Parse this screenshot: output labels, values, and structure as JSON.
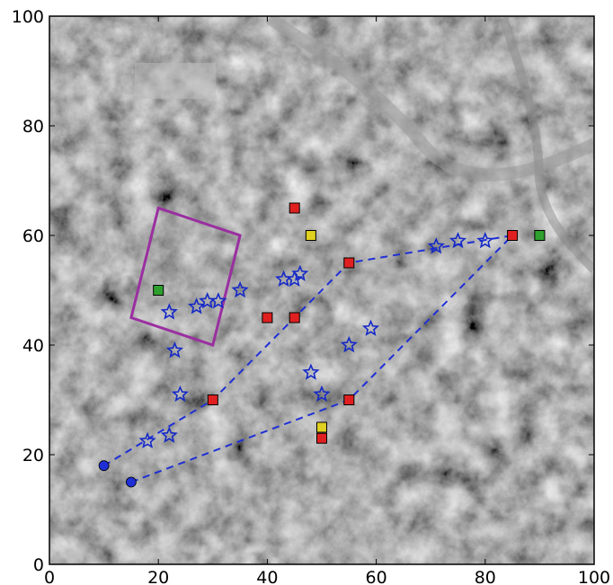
{
  "chart_data": {
    "type": "scatter",
    "xlim": [
      0,
      100
    ],
    "ylim": [
      0,
      100
    ],
    "x_ticks": [
      "0",
      "20",
      "40",
      "60",
      "80",
      "100"
    ],
    "y_ticks": [
      "0",
      "20",
      "40",
      "60",
      "80",
      "100"
    ],
    "grid": false,
    "background": "grayscale satellite image",
    "series": [
      {
        "marker": "dashed-line",
        "color": "#1f2fd6",
        "points": [
          [
            10,
            18
          ],
          [
            30,
            30
          ],
          [
            45,
            45
          ],
          [
            55,
            55
          ],
          [
            85,
            60
          ]
        ]
      },
      {
        "marker": "dashed-line",
        "color": "#1f2fd6",
        "points": [
          [
            15,
            15
          ],
          [
            55,
            30
          ],
          [
            85,
            60
          ]
        ]
      },
      {
        "marker": "circle",
        "color": "#1f2fd6",
        "points": [
          [
            10,
            18
          ],
          [
            15,
            15
          ]
        ]
      },
      {
        "marker": "square",
        "color": "#e02020",
        "points": [
          [
            30,
            30
          ],
          [
            40,
            45
          ],
          [
            45,
            45
          ],
          [
            55,
            55
          ],
          [
            45,
            65
          ],
          [
            55,
            30
          ],
          [
            50,
            23
          ],
          [
            85,
            60
          ]
        ]
      },
      {
        "marker": "square",
        "color": "#2ea02e",
        "points": [
          [
            20,
            50
          ],
          [
            90,
            60
          ]
        ]
      },
      {
        "marker": "square",
        "color": "#e0d020",
        "points": [
          [
            48,
            60
          ],
          [
            50,
            25
          ]
        ]
      },
      {
        "marker": "star",
        "color": "#1428c8",
        "points": [
          [
            18,
            22.5
          ],
          [
            22,
            23.5
          ],
          [
            24,
            31
          ],
          [
            23,
            39
          ],
          [
            22,
            46
          ],
          [
            27,
            47
          ],
          [
            29,
            48
          ],
          [
            31,
            48
          ],
          [
            35,
            50
          ],
          [
            43,
            52
          ],
          [
            45,
            52
          ],
          [
            46,
            53
          ],
          [
            55,
            40
          ],
          [
            59,
            43
          ],
          [
            48,
            35
          ],
          [
            50,
            31
          ],
          [
            71,
            58
          ],
          [
            75,
            59
          ],
          [
            80,
            59
          ]
        ]
      }
    ],
    "polygon": {
      "color": "#9a2fa0",
      "points": [
        [
          15,
          45
        ],
        [
          30,
          40
        ],
        [
          35,
          60
        ],
        [
          20,
          65
        ]
      ]
    }
  }
}
